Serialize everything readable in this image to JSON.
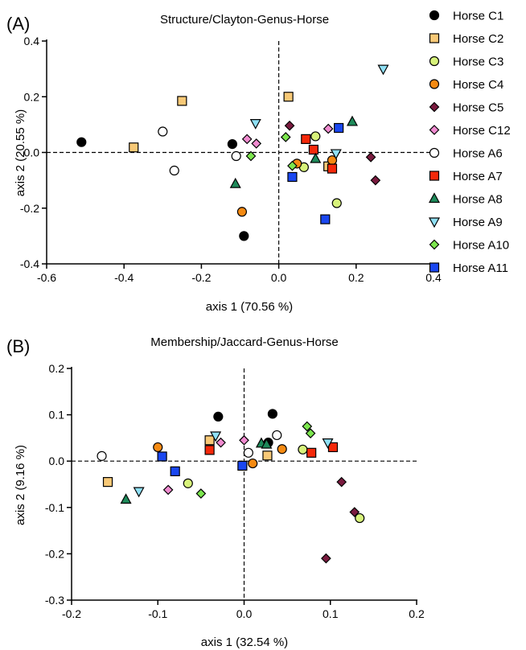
{
  "legend": [
    {
      "name": "Horse C1",
      "marker": "circle",
      "fill": "#000000"
    },
    {
      "name": "Horse C2",
      "marker": "square",
      "fill": "#F8C977"
    },
    {
      "name": "Horse C3",
      "marker": "circle",
      "fill": "#D7F27A"
    },
    {
      "name": "Horse C4",
      "marker": "circle",
      "fill": "#F58A12"
    },
    {
      "name": "Horse C5",
      "marker": "diamond",
      "fill": "#7A1B3F"
    },
    {
      "name": "Horse C12",
      "marker": "diamond",
      "fill": "#F08BD0"
    },
    {
      "name": "Horse A6",
      "marker": "circle",
      "fill": "#FFFFFF"
    },
    {
      "name": "Horse A7",
      "marker": "square",
      "fill": "#F5290A"
    },
    {
      "name": "Horse A8",
      "marker": "triangle-up",
      "fill": "#1E8A5A"
    },
    {
      "name": "Horse A9",
      "marker": "triangle-down",
      "fill": "#8FE0F5"
    },
    {
      "name": "Horse A10",
      "marker": "diamond",
      "fill": "#7CE64E"
    },
    {
      "name": "Horse A11",
      "marker": "square",
      "fill": "#1A47F0"
    }
  ],
  "chart_data": [
    {
      "panel": "(A)",
      "type": "scatter",
      "title": "Structure/Clayton-Genus-Horse",
      "xlabel": "axis 1 (70.56 %)",
      "ylabel": "axis 2 (20.55 %)",
      "xlim": [
        -0.6,
        0.4
      ],
      "ylim": [
        -0.4,
        0.4
      ],
      "xticks": [
        "-0.6",
        "-0.4",
        "-0.2",
        "0.0",
        "0.2",
        "0.4"
      ],
      "yticks": [
        "0.4",
        "0.2",
        "0.0",
        "-0.2",
        "-0.4"
      ],
      "reference_lines": {
        "x": 0,
        "y": 0,
        "style": "dashed"
      },
      "grid": false,
      "legend_position": "right",
      "series": [
        {
          "name": "Horse C1",
          "points": [
            [
              -0.51,
              0.037
            ],
            [
              -0.12,
              0.03
            ],
            [
              -0.09,
              -0.3
            ]
          ]
        },
        {
          "name": "Horse C2",
          "points": [
            [
              -0.375,
              0.018
            ],
            [
              -0.25,
              0.185
            ],
            [
              0.025,
              0.2
            ],
            [
              0.128,
              -0.05
            ]
          ]
        },
        {
          "name": "Horse C3",
          "points": [
            [
              0.065,
              -0.053
            ],
            [
              0.095,
              0.058
            ],
            [
              0.15,
              -0.182
            ]
          ]
        },
        {
          "name": "Horse C4",
          "points": [
            [
              -0.095,
              -0.213
            ],
            [
              0.047,
              -0.04
            ],
            [
              0.138,
              -0.028
            ]
          ]
        },
        {
          "name": "Horse C5",
          "points": [
            [
              0.028,
              0.096
            ],
            [
              0.238,
              -0.017
            ],
            [
              0.25,
              -0.1
            ]
          ]
        },
        {
          "name": "Horse C12",
          "points": [
            [
              -0.082,
              0.048
            ],
            [
              -0.058,
              0.032
            ],
            [
              0.128,
              0.085
            ]
          ]
        },
        {
          "name": "Horse A6",
          "points": [
            [
              -0.3,
              0.075
            ],
            [
              -0.27,
              -0.065
            ],
            [
              -0.11,
              -0.013
            ]
          ]
        },
        {
          "name": "Horse A7",
          "points": [
            [
              0.07,
              0.048
            ],
            [
              0.09,
              0.01
            ],
            [
              0.138,
              -0.058
            ]
          ]
        },
        {
          "name": "Horse A8",
          "points": [
            [
              -0.112,
              -0.113
            ],
            [
              0.095,
              -0.023
            ],
            [
              0.19,
              0.11
            ]
          ]
        },
        {
          "name": "Horse A9",
          "points": [
            [
              -0.06,
              0.105
            ],
            [
              0.148,
              -0.003
            ],
            [
              0.27,
              0.3
            ]
          ]
        },
        {
          "name": "Horse A10",
          "points": [
            [
              -0.072,
              -0.013
            ],
            [
              0.018,
              0.055
            ],
            [
              0.035,
              -0.048
            ]
          ]
        },
        {
          "name": "Horse A11",
          "points": [
            [
              0.035,
              -0.088
            ],
            [
              0.12,
              -0.24
            ],
            [
              0.155,
              0.088
            ]
          ]
        }
      ]
    },
    {
      "panel": "(B)",
      "type": "scatter",
      "title": "Membership/Jaccard-Genus-Horse",
      "xlabel": "axis 1 (32.54 %)",
      "ylabel": "axis 2 (9.16 %)",
      "xlim": [
        -0.2,
        0.2
      ],
      "ylim": [
        -0.3,
        0.2
      ],
      "xticks": [
        "-0.2",
        "-0.1",
        "0.0",
        "0.1",
        "0.2"
      ],
      "yticks": [
        "0.2",
        "0.1",
        "0.0",
        "-0.1",
        "-0.2",
        "-0.3"
      ],
      "reference_lines": {
        "x": 0,
        "y": 0,
        "style": "dashed"
      },
      "grid": false,
      "series": [
        {
          "name": "Horse C1",
          "points": [
            [
              -0.03,
              0.096
            ],
            [
              0.028,
              0.04
            ],
            [
              0.033,
              0.102
            ]
          ]
        },
        {
          "name": "Horse C2",
          "points": [
            [
              -0.158,
              -0.045
            ],
            [
              -0.04,
              0.045
            ],
            [
              0.027,
              0.012
            ]
          ]
        },
        {
          "name": "Horse C3",
          "points": [
            [
              -0.065,
              -0.048
            ],
            [
              0.068,
              0.025
            ],
            [
              0.134,
              -0.123
            ]
          ]
        },
        {
          "name": "Horse C4",
          "points": [
            [
              -0.1,
              0.03
            ],
            [
              0.01,
              -0.005
            ],
            [
              0.044,
              0.026
            ]
          ]
        },
        {
          "name": "Horse C5",
          "points": [
            [
              0.095,
              -0.21
            ],
            [
              0.113,
              -0.045
            ],
            [
              0.128,
              -0.11
            ]
          ]
        },
        {
          "name": "Horse C12",
          "points": [
            [
              -0.088,
              -0.062
            ],
            [
              -0.027,
              0.04
            ],
            [
              0.0,
              0.045
            ]
          ]
        },
        {
          "name": "Horse A6",
          "points": [
            [
              -0.165,
              0.011
            ],
            [
              0.005,
              0.018
            ],
            [
              0.038,
              0.056
            ]
          ]
        },
        {
          "name": "Horse A7",
          "points": [
            [
              -0.04,
              0.024
            ],
            [
              0.078,
              0.018
            ],
            [
              0.103,
              0.03
            ]
          ]
        },
        {
          "name": "Horse A8",
          "points": [
            [
              -0.137,
              -0.083
            ],
            [
              0.02,
              0.038
            ],
            [
              0.026,
              0.036
            ]
          ]
        },
        {
          "name": "Horse A9",
          "points": [
            [
              -0.122,
              -0.065
            ],
            [
              -0.033,
              0.055
            ],
            [
              0.097,
              0.04
            ]
          ]
        },
        {
          "name": "Horse A10",
          "points": [
            [
              -0.05,
              -0.07
            ],
            [
              0.073,
              0.075
            ],
            [
              0.077,
              0.06
            ]
          ]
        },
        {
          "name": "Horse A11",
          "points": [
            [
              -0.095,
              0.01
            ],
            [
              -0.08,
              -0.022
            ],
            [
              -0.002,
              -0.01
            ]
          ]
        }
      ]
    }
  ]
}
